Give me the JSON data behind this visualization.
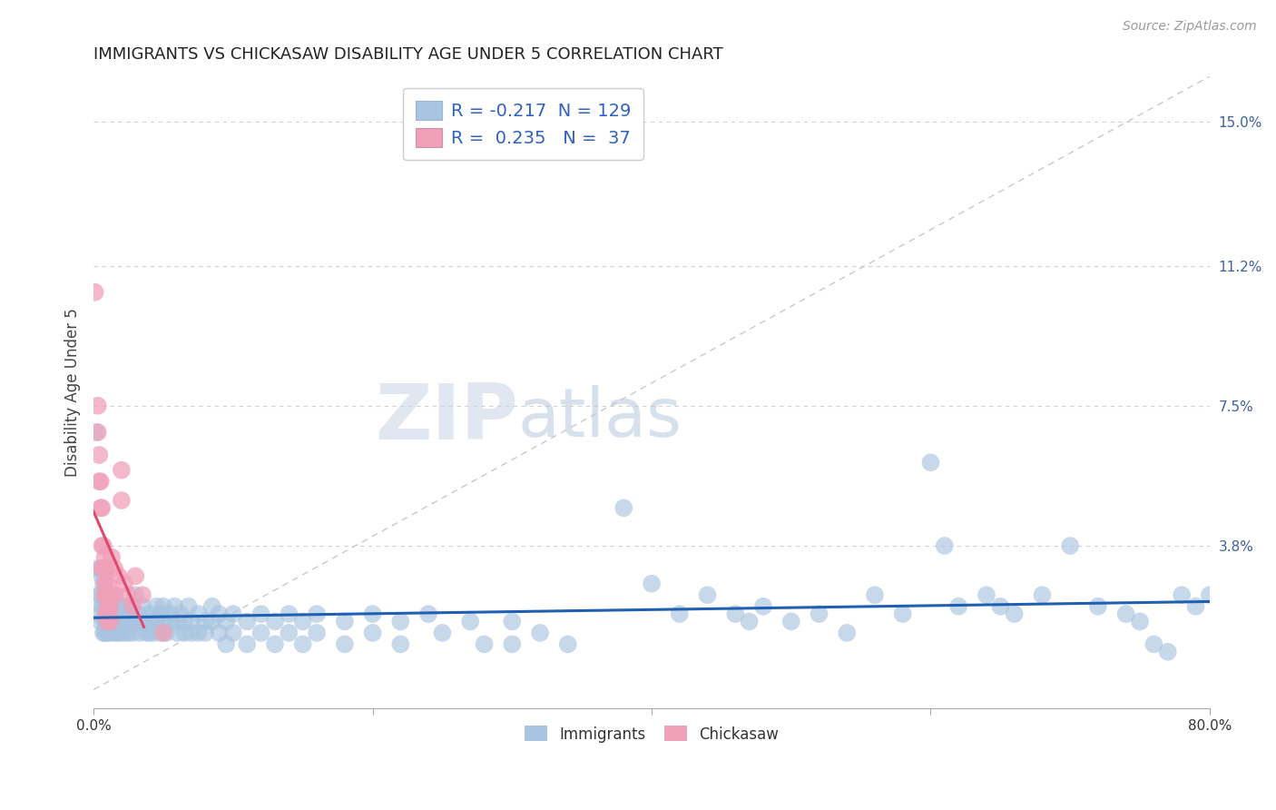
{
  "title": "IMMIGRANTS VS CHICKASAW DISABILITY AGE UNDER 5 CORRELATION CHART",
  "source": "Source: ZipAtlas.com",
  "ylabel": "Disability Age Under 5",
  "ytick_labels": [
    "3.8%",
    "7.5%",
    "11.2%",
    "15.0%"
  ],
  "ytick_values": [
    0.038,
    0.075,
    0.112,
    0.15
  ],
  "xmin": 0.0,
  "xmax": 0.8,
  "ymin": -0.005,
  "ymax": 0.162,
  "immigrants_R": -0.217,
  "immigrants_N": 129,
  "chickasaw_R": 0.235,
  "chickasaw_N": 37,
  "immigrants_color": "#a8c4e0",
  "immigrants_line_color": "#2060b0",
  "chickasaw_color": "#f0a0b8",
  "chickasaw_line_color": "#e04870",
  "watermark_zip_color": "#c8d4e4",
  "watermark_atlas_color": "#b8cce0",
  "grid_color": "#d0d0d8",
  "legend_text_color": "#3060c0",
  "axis_label_color": "#4060a0",
  "immigrants_scatter": [
    [
      0.002,
      0.068
    ],
    [
      0.003,
      0.032
    ],
    [
      0.004,
      0.025
    ],
    [
      0.004,
      0.02
    ],
    [
      0.005,
      0.032
    ],
    [
      0.005,
      0.025
    ],
    [
      0.005,
      0.018
    ],
    [
      0.006,
      0.03
    ],
    [
      0.006,
      0.022
    ],
    [
      0.007,
      0.028
    ],
    [
      0.007,
      0.022
    ],
    [
      0.007,
      0.015
    ],
    [
      0.008,
      0.025
    ],
    [
      0.008,
      0.018
    ],
    [
      0.008,
      0.015
    ],
    [
      0.009,
      0.022
    ],
    [
      0.009,
      0.018
    ],
    [
      0.009,
      0.015
    ],
    [
      0.01,
      0.025
    ],
    [
      0.01,
      0.02
    ],
    [
      0.01,
      0.015
    ],
    [
      0.011,
      0.022
    ],
    [
      0.011,
      0.018
    ],
    [
      0.012,
      0.02
    ],
    [
      0.012,
      0.015
    ],
    [
      0.013,
      0.022
    ],
    [
      0.013,
      0.018
    ],
    [
      0.014,
      0.025
    ],
    [
      0.014,
      0.02
    ],
    [
      0.015,
      0.018
    ],
    [
      0.015,
      0.015
    ],
    [
      0.016,
      0.022
    ],
    [
      0.016,
      0.018
    ],
    [
      0.017,
      0.02
    ],
    [
      0.017,
      0.015
    ],
    [
      0.018,
      0.022
    ],
    [
      0.018,
      0.018
    ],
    [
      0.019,
      0.015
    ],
    [
      0.02,
      0.022
    ],
    [
      0.02,
      0.018
    ],
    [
      0.022,
      0.02
    ],
    [
      0.022,
      0.015
    ],
    [
      0.023,
      0.022
    ],
    [
      0.025,
      0.018
    ],
    [
      0.025,
      0.015
    ],
    [
      0.027,
      0.022
    ],
    [
      0.028,
      0.018
    ],
    [
      0.028,
      0.015
    ],
    [
      0.03,
      0.025
    ],
    [
      0.03,
      0.018
    ],
    [
      0.032,
      0.02
    ],
    [
      0.033,
      0.015
    ],
    [
      0.035,
      0.022
    ],
    [
      0.035,
      0.018
    ],
    [
      0.038,
      0.018
    ],
    [
      0.038,
      0.015
    ],
    [
      0.04,
      0.02
    ],
    [
      0.04,
      0.015
    ],
    [
      0.042,
      0.018
    ],
    [
      0.043,
      0.015
    ],
    [
      0.045,
      0.022
    ],
    [
      0.045,
      0.018
    ],
    [
      0.048,
      0.02
    ],
    [
      0.048,
      0.015
    ],
    [
      0.05,
      0.022
    ],
    [
      0.05,
      0.018
    ],
    [
      0.052,
      0.015
    ],
    [
      0.055,
      0.02
    ],
    [
      0.055,
      0.018
    ],
    [
      0.058,
      0.022
    ],
    [
      0.06,
      0.018
    ],
    [
      0.06,
      0.015
    ],
    [
      0.062,
      0.02
    ],
    [
      0.065,
      0.018
    ],
    [
      0.065,
      0.015
    ],
    [
      0.068,
      0.022
    ],
    [
      0.07,
      0.018
    ],
    [
      0.07,
      0.015
    ],
    [
      0.075,
      0.02
    ],
    [
      0.075,
      0.015
    ],
    [
      0.08,
      0.018
    ],
    [
      0.08,
      0.015
    ],
    [
      0.085,
      0.022
    ],
    [
      0.085,
      0.018
    ],
    [
      0.09,
      0.02
    ],
    [
      0.09,
      0.015
    ],
    [
      0.095,
      0.018
    ],
    [
      0.095,
      0.012
    ],
    [
      0.1,
      0.02
    ],
    [
      0.1,
      0.015
    ],
    [
      0.11,
      0.018
    ],
    [
      0.11,
      0.012
    ],
    [
      0.12,
      0.02
    ],
    [
      0.12,
      0.015
    ],
    [
      0.13,
      0.018
    ],
    [
      0.13,
      0.012
    ],
    [
      0.14,
      0.02
    ],
    [
      0.14,
      0.015
    ],
    [
      0.15,
      0.018
    ],
    [
      0.15,
      0.012
    ],
    [
      0.16,
      0.02
    ],
    [
      0.16,
      0.015
    ],
    [
      0.18,
      0.018
    ],
    [
      0.18,
      0.012
    ],
    [
      0.2,
      0.02
    ],
    [
      0.2,
      0.015
    ],
    [
      0.22,
      0.018
    ],
    [
      0.22,
      0.012
    ],
    [
      0.24,
      0.02
    ],
    [
      0.25,
      0.015
    ],
    [
      0.27,
      0.018
    ],
    [
      0.28,
      0.012
    ],
    [
      0.3,
      0.018
    ],
    [
      0.3,
      0.012
    ],
    [
      0.32,
      0.015
    ],
    [
      0.34,
      0.012
    ],
    [
      0.38,
      0.048
    ],
    [
      0.4,
      0.028
    ],
    [
      0.42,
      0.02
    ],
    [
      0.44,
      0.025
    ],
    [
      0.46,
      0.02
    ],
    [
      0.47,
      0.018
    ],
    [
      0.48,
      0.022
    ],
    [
      0.5,
      0.018
    ],
    [
      0.52,
      0.02
    ],
    [
      0.54,
      0.015
    ],
    [
      0.56,
      0.025
    ],
    [
      0.58,
      0.02
    ],
    [
      0.6,
      0.06
    ],
    [
      0.61,
      0.038
    ],
    [
      0.62,
      0.022
    ],
    [
      0.64,
      0.025
    ],
    [
      0.65,
      0.022
    ],
    [
      0.66,
      0.02
    ],
    [
      0.68,
      0.025
    ],
    [
      0.7,
      0.038
    ],
    [
      0.72,
      0.022
    ],
    [
      0.74,
      0.02
    ],
    [
      0.75,
      0.018
    ],
    [
      0.76,
      0.012
    ],
    [
      0.77,
      0.01
    ],
    [
      0.78,
      0.025
    ],
    [
      0.79,
      0.022
    ],
    [
      0.8,
      0.025
    ]
  ],
  "chickasaw_scatter": [
    [
      0.001,
      0.105
    ],
    [
      0.003,
      0.075
    ],
    [
      0.003,
      0.068
    ],
    [
      0.004,
      0.062
    ],
    [
      0.004,
      0.055
    ],
    [
      0.005,
      0.055
    ],
    [
      0.005,
      0.048
    ],
    [
      0.006,
      0.048
    ],
    [
      0.006,
      0.038
    ],
    [
      0.006,
      0.032
    ],
    [
      0.007,
      0.038
    ],
    [
      0.007,
      0.032
    ],
    [
      0.008,
      0.035
    ],
    [
      0.008,
      0.028
    ],
    [
      0.008,
      0.025
    ],
    [
      0.009,
      0.032
    ],
    [
      0.009,
      0.025
    ],
    [
      0.009,
      0.02
    ],
    [
      0.01,
      0.028
    ],
    [
      0.01,
      0.022
    ],
    [
      0.01,
      0.018
    ],
    [
      0.011,
      0.025
    ],
    [
      0.011,
      0.02
    ],
    [
      0.012,
      0.022
    ],
    [
      0.012,
      0.018
    ],
    [
      0.013,
      0.035
    ],
    [
      0.013,
      0.025
    ],
    [
      0.015,
      0.032
    ],
    [
      0.015,
      0.025
    ],
    [
      0.018,
      0.03
    ],
    [
      0.02,
      0.05
    ],
    [
      0.02,
      0.058
    ],
    [
      0.022,
      0.028
    ],
    [
      0.025,
      0.025
    ],
    [
      0.028,
      0.022
    ],
    [
      0.03,
      0.03
    ],
    [
      0.035,
      0.025
    ],
    [
      0.05,
      0.015
    ]
  ]
}
